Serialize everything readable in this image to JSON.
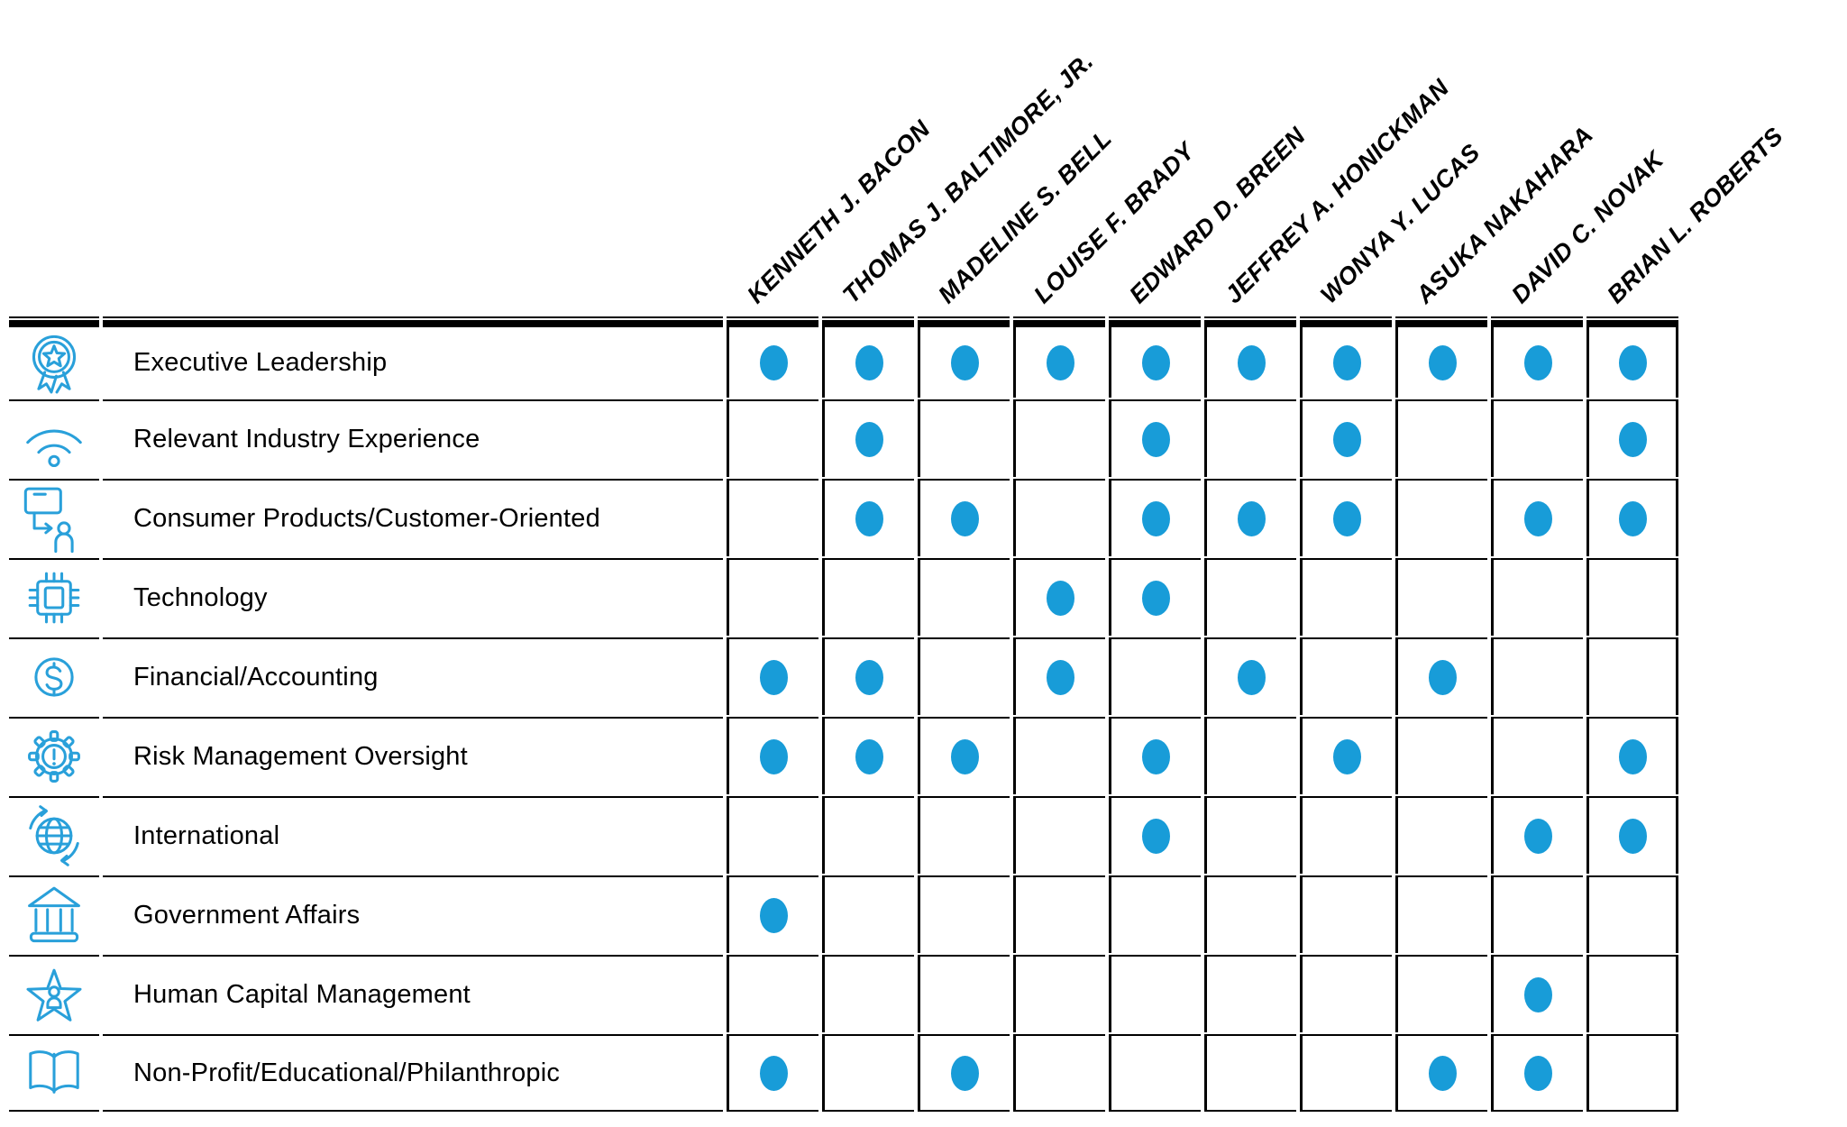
{
  "colors": {
    "dot": "#189CD8",
    "icon_stroke": "#29A0DA",
    "line": "#000000",
    "text": "#000000"
  },
  "table": {
    "columns": [
      "KENNETH J. BACON",
      "THOMAS J. BALTIMORE, JR.",
      "MADELINE S. BELL",
      "LOUISE F. BRADY",
      "EDWARD D. BREEN",
      "JEFFREY A. HONICKMAN",
      "WONYA Y. LUCAS",
      "ASUKA NAKAHARA",
      "DAVID C. NOVAK",
      "BRIAN L. ROBERTS"
    ],
    "rows": [
      {
        "label": "Executive Leadership",
        "icon": "award-icon",
        "marks": [
          1,
          1,
          1,
          1,
          1,
          1,
          1,
          1,
          1,
          1
        ]
      },
      {
        "label": "Relevant Industry Experience",
        "icon": "wifi-icon",
        "marks": [
          0,
          1,
          0,
          0,
          1,
          0,
          1,
          0,
          0,
          1
        ]
      },
      {
        "label": "Consumer Products/Customer-Oriented",
        "icon": "consumer-icon",
        "marks": [
          0,
          1,
          1,
          0,
          1,
          1,
          1,
          0,
          1,
          1
        ]
      },
      {
        "label": "Technology",
        "icon": "chip-icon",
        "marks": [
          0,
          0,
          0,
          1,
          1,
          0,
          0,
          0,
          0,
          0
        ]
      },
      {
        "label": "Financial/Accounting",
        "icon": "dollar-icon",
        "marks": [
          1,
          1,
          0,
          1,
          0,
          1,
          0,
          1,
          0,
          0
        ]
      },
      {
        "label": "Risk Management Oversight",
        "icon": "gear-alert-icon",
        "marks": [
          1,
          1,
          1,
          0,
          1,
          0,
          1,
          0,
          0,
          1
        ]
      },
      {
        "label": "International",
        "icon": "globe-icon",
        "marks": [
          0,
          0,
          0,
          0,
          1,
          0,
          0,
          0,
          1,
          1
        ]
      },
      {
        "label": "Government Affairs",
        "icon": "bank-icon",
        "marks": [
          1,
          0,
          0,
          0,
          0,
          0,
          0,
          0,
          0,
          0
        ]
      },
      {
        "label": "Human Capital Management",
        "icon": "star-person-icon",
        "marks": [
          0,
          0,
          0,
          0,
          0,
          0,
          0,
          0,
          1,
          0
        ]
      },
      {
        "label": "Non-Profit/Educational/Philanthropic",
        "icon": "book-icon",
        "marks": [
          1,
          0,
          1,
          0,
          0,
          0,
          0,
          1,
          1,
          0
        ]
      }
    ]
  }
}
